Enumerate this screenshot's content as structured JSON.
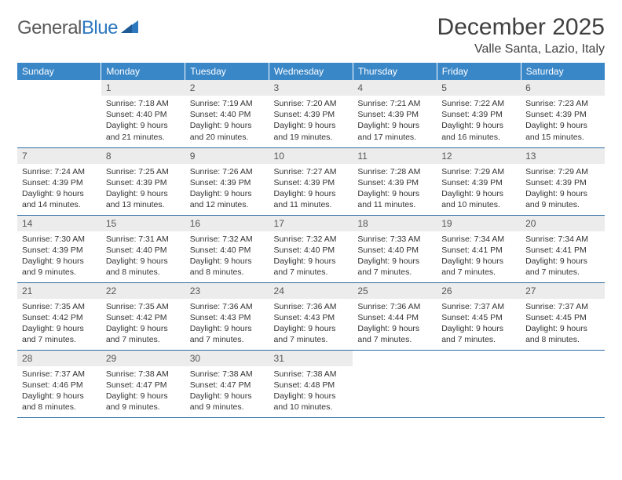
{
  "logo": {
    "part1": "General",
    "part2": "Blue"
  },
  "title": "December 2025",
  "location": "Valle Santa, Lazio, Italy",
  "header_bg": "#3a87c8",
  "header_fg": "#ffffff",
  "daynum_bg": "#ececec",
  "row_border": "#2d6ca3",
  "weekdays": [
    "Sunday",
    "Monday",
    "Tuesday",
    "Wednesday",
    "Thursday",
    "Friday",
    "Saturday"
  ],
  "start_offset": 1,
  "days": [
    {
      "n": 1,
      "sr": "7:18 AM",
      "ss": "4:40 PM",
      "dl": "9 hours and 21 minutes."
    },
    {
      "n": 2,
      "sr": "7:19 AM",
      "ss": "4:40 PM",
      "dl": "9 hours and 20 minutes."
    },
    {
      "n": 3,
      "sr": "7:20 AM",
      "ss": "4:39 PM",
      "dl": "9 hours and 19 minutes."
    },
    {
      "n": 4,
      "sr": "7:21 AM",
      "ss": "4:39 PM",
      "dl": "9 hours and 17 minutes."
    },
    {
      "n": 5,
      "sr": "7:22 AM",
      "ss": "4:39 PM",
      "dl": "9 hours and 16 minutes."
    },
    {
      "n": 6,
      "sr": "7:23 AM",
      "ss": "4:39 PM",
      "dl": "9 hours and 15 minutes."
    },
    {
      "n": 7,
      "sr": "7:24 AM",
      "ss": "4:39 PM",
      "dl": "9 hours and 14 minutes."
    },
    {
      "n": 8,
      "sr": "7:25 AM",
      "ss": "4:39 PM",
      "dl": "9 hours and 13 minutes."
    },
    {
      "n": 9,
      "sr": "7:26 AM",
      "ss": "4:39 PM",
      "dl": "9 hours and 12 minutes."
    },
    {
      "n": 10,
      "sr": "7:27 AM",
      "ss": "4:39 PM",
      "dl": "9 hours and 11 minutes."
    },
    {
      "n": 11,
      "sr": "7:28 AM",
      "ss": "4:39 PM",
      "dl": "9 hours and 11 minutes."
    },
    {
      "n": 12,
      "sr": "7:29 AM",
      "ss": "4:39 PM",
      "dl": "9 hours and 10 minutes."
    },
    {
      "n": 13,
      "sr": "7:29 AM",
      "ss": "4:39 PM",
      "dl": "9 hours and 9 minutes."
    },
    {
      "n": 14,
      "sr": "7:30 AM",
      "ss": "4:39 PM",
      "dl": "9 hours and 9 minutes."
    },
    {
      "n": 15,
      "sr": "7:31 AM",
      "ss": "4:40 PM",
      "dl": "9 hours and 8 minutes."
    },
    {
      "n": 16,
      "sr": "7:32 AM",
      "ss": "4:40 PM",
      "dl": "9 hours and 8 minutes."
    },
    {
      "n": 17,
      "sr": "7:32 AM",
      "ss": "4:40 PM",
      "dl": "9 hours and 7 minutes."
    },
    {
      "n": 18,
      "sr": "7:33 AM",
      "ss": "4:40 PM",
      "dl": "9 hours and 7 minutes."
    },
    {
      "n": 19,
      "sr": "7:34 AM",
      "ss": "4:41 PM",
      "dl": "9 hours and 7 minutes."
    },
    {
      "n": 20,
      "sr": "7:34 AM",
      "ss": "4:41 PM",
      "dl": "9 hours and 7 minutes."
    },
    {
      "n": 21,
      "sr": "7:35 AM",
      "ss": "4:42 PM",
      "dl": "9 hours and 7 minutes."
    },
    {
      "n": 22,
      "sr": "7:35 AM",
      "ss": "4:42 PM",
      "dl": "9 hours and 7 minutes."
    },
    {
      "n": 23,
      "sr": "7:36 AM",
      "ss": "4:43 PM",
      "dl": "9 hours and 7 minutes."
    },
    {
      "n": 24,
      "sr": "7:36 AM",
      "ss": "4:43 PM",
      "dl": "9 hours and 7 minutes."
    },
    {
      "n": 25,
      "sr": "7:36 AM",
      "ss": "4:44 PM",
      "dl": "9 hours and 7 minutes."
    },
    {
      "n": 26,
      "sr": "7:37 AM",
      "ss": "4:45 PM",
      "dl": "9 hours and 7 minutes."
    },
    {
      "n": 27,
      "sr": "7:37 AM",
      "ss": "4:45 PM",
      "dl": "9 hours and 8 minutes."
    },
    {
      "n": 28,
      "sr": "7:37 AM",
      "ss": "4:46 PM",
      "dl": "9 hours and 8 minutes."
    },
    {
      "n": 29,
      "sr": "7:38 AM",
      "ss": "4:47 PM",
      "dl": "9 hours and 9 minutes."
    },
    {
      "n": 30,
      "sr": "7:38 AM",
      "ss": "4:47 PM",
      "dl": "9 hours and 9 minutes."
    },
    {
      "n": 31,
      "sr": "7:38 AM",
      "ss": "4:48 PM",
      "dl": "9 hours and 10 minutes."
    }
  ],
  "labels": {
    "sunrise": "Sunrise:",
    "sunset": "Sunset:",
    "daylight": "Daylight:"
  }
}
